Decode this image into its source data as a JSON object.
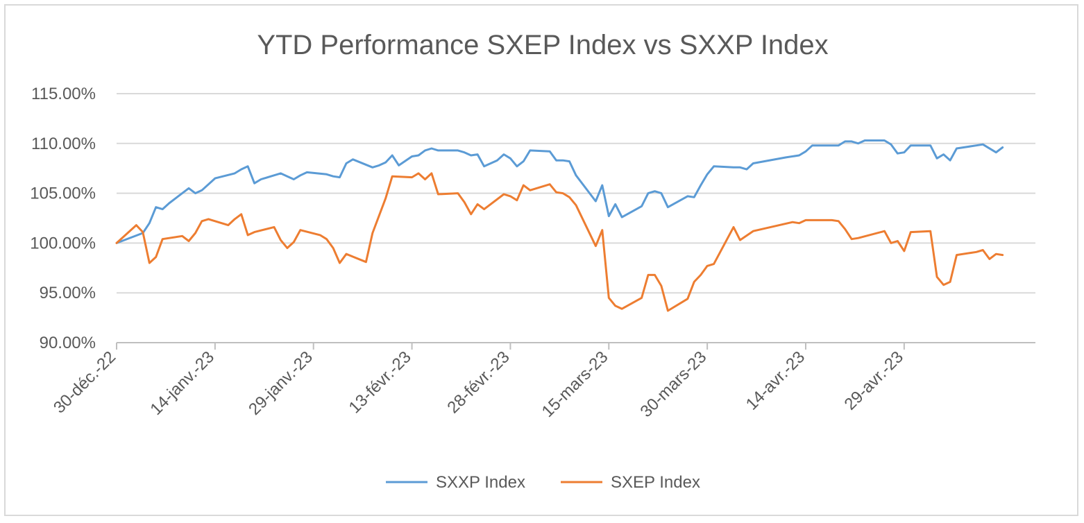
{
  "chart_data": {
    "type": "line",
    "title": "YTD Performance SXEP Index vs SXXP Index",
    "xlabel": "",
    "ylabel": "",
    "x_range": [
      "2022-12-30",
      "2023-05-19"
    ],
    "ylim": [
      0.9,
      1.15
    ],
    "y_ticks": [
      "90.00%",
      "95.00%",
      "100.00%",
      "105.00%",
      "110.00%",
      "115.00%"
    ],
    "y_tick_values": [
      0.9,
      0.95,
      1.0,
      1.05,
      1.1,
      1.15
    ],
    "x_tick_labels": [
      "30-déc.-22",
      "14-janv.-23",
      "29-janv.-23",
      "13-févr.-23",
      "28-févr.-23",
      "15-mars-23",
      "30-mars-23",
      "14-avr.-23",
      "29-avr.-23"
    ],
    "x_tick_dates": [
      "2022-12-30",
      "2023-01-14",
      "2023-01-29",
      "2023-02-13",
      "2023-02-28",
      "2023-03-15",
      "2023-03-30",
      "2023-04-14",
      "2023-04-29"
    ],
    "grid": true,
    "legend_position": "bottom",
    "series": [
      {
        "name": "SXXP Index",
        "color": "#5b9bd5",
        "points": [
          [
            "2022-12-30",
            1.0
          ],
          [
            "2023-01-03",
            1.01
          ],
          [
            "2023-01-04",
            1.02
          ],
          [
            "2023-01-05",
            1.036
          ],
          [
            "2023-01-06",
            1.034
          ],
          [
            "2023-01-07",
            1.04
          ],
          [
            "2023-01-09",
            1.05
          ],
          [
            "2023-01-10",
            1.055
          ],
          [
            "2023-01-11",
            1.05
          ],
          [
            "2023-01-12",
            1.053
          ],
          [
            "2023-01-14",
            1.065
          ],
          [
            "2023-01-17",
            1.07
          ],
          [
            "2023-01-18",
            1.074
          ],
          [
            "2023-01-19",
            1.077
          ],
          [
            "2023-01-20",
            1.06
          ],
          [
            "2023-01-21",
            1.064
          ],
          [
            "2023-01-24",
            1.07
          ],
          [
            "2023-01-25",
            1.067
          ],
          [
            "2023-01-26",
            1.064
          ],
          [
            "2023-01-27",
            1.068
          ],
          [
            "2023-01-28",
            1.071
          ],
          [
            "2023-01-31",
            1.069
          ],
          [
            "2023-02-01",
            1.067
          ],
          [
            "2023-02-02",
            1.066
          ],
          [
            "2023-02-03",
            1.08
          ],
          [
            "2023-02-04",
            1.084
          ],
          [
            "2023-02-07",
            1.076
          ],
          [
            "2023-02-08",
            1.078
          ],
          [
            "2023-02-09",
            1.081
          ],
          [
            "2023-02-10",
            1.088
          ],
          [
            "2023-02-11",
            1.078
          ],
          [
            "2023-02-13",
            1.087
          ],
          [
            "2023-02-14",
            1.088
          ],
          [
            "2023-02-15",
            1.093
          ],
          [
            "2023-02-16",
            1.095
          ],
          [
            "2023-02-17",
            1.093
          ],
          [
            "2023-02-20",
            1.093
          ],
          [
            "2023-02-21",
            1.091
          ],
          [
            "2023-02-22",
            1.088
          ],
          [
            "2023-02-23",
            1.089
          ],
          [
            "2023-02-24",
            1.077
          ],
          [
            "2023-02-26",
            1.083
          ],
          [
            "2023-02-27",
            1.089
          ],
          [
            "2023-02-28",
            1.085
          ],
          [
            "2023-03-01",
            1.077
          ],
          [
            "2023-03-02",
            1.082
          ],
          [
            "2023-03-03",
            1.093
          ],
          [
            "2023-03-06",
            1.092
          ],
          [
            "2023-03-07",
            1.083
          ],
          [
            "2023-03-08",
            1.083
          ],
          [
            "2023-03-09",
            1.082
          ],
          [
            "2023-03-10",
            1.068
          ],
          [
            "2023-03-13",
            1.042
          ],
          [
            "2023-03-14",
            1.058
          ],
          [
            "2023-03-15",
            1.027
          ],
          [
            "2023-03-16",
            1.039
          ],
          [
            "2023-03-17",
            1.026
          ],
          [
            "2023-03-20",
            1.037
          ],
          [
            "2023-03-21",
            1.05
          ],
          [
            "2023-03-22",
            1.052
          ],
          [
            "2023-03-23",
            1.05
          ],
          [
            "2023-03-24",
            1.036
          ],
          [
            "2023-03-27",
            1.047
          ],
          [
            "2023-03-28",
            1.046
          ],
          [
            "2023-03-29",
            1.058
          ],
          [
            "2023-03-30",
            1.069
          ],
          [
            "2023-03-31",
            1.077
          ],
          [
            "2023-04-03",
            1.076
          ],
          [
            "2023-04-04",
            1.076
          ],
          [
            "2023-04-05",
            1.074
          ],
          [
            "2023-04-06",
            1.08
          ],
          [
            "2023-04-11",
            1.086
          ],
          [
            "2023-04-13",
            1.088
          ],
          [
            "2023-04-14",
            1.092
          ],
          [
            "2023-04-15",
            1.098
          ],
          [
            "2023-04-18",
            1.098
          ],
          [
            "2023-04-19",
            1.098
          ],
          [
            "2023-04-20",
            1.102
          ],
          [
            "2023-04-21",
            1.102
          ],
          [
            "2023-04-22",
            1.1
          ],
          [
            "2023-04-23",
            1.103
          ],
          [
            "2023-04-26",
            1.103
          ],
          [
            "2023-04-27",
            1.099
          ],
          [
            "2023-04-28",
            1.09
          ],
          [
            "2023-04-29",
            1.091
          ],
          [
            "2023-04-30",
            1.098
          ],
          [
            "2023-05-03",
            1.098
          ],
          [
            "2023-05-04",
            1.085
          ],
          [
            "2023-05-05",
            1.089
          ],
          [
            "2023-05-06",
            1.083
          ],
          [
            "2023-05-07",
            1.095
          ],
          [
            "2023-05-10",
            1.098
          ],
          [
            "2023-05-11",
            1.099
          ],
          [
            "2023-05-13",
            1.091
          ],
          [
            "2023-05-14",
            1.096
          ]
        ]
      },
      {
        "name": "SXEP Index",
        "color": "#ed7d31",
        "points": [
          [
            "2022-12-30",
            1.0
          ],
          [
            "2023-01-02",
            1.018
          ],
          [
            "2023-01-03",
            1.011
          ],
          [
            "2023-01-04",
            0.98
          ],
          [
            "2023-01-05",
            0.986
          ],
          [
            "2023-01-06",
            1.004
          ],
          [
            "2023-01-09",
            1.007
          ],
          [
            "2023-01-10",
            1.002
          ],
          [
            "2023-01-11",
            1.01
          ],
          [
            "2023-01-12",
            1.022
          ],
          [
            "2023-01-13",
            1.024
          ],
          [
            "2023-01-16",
            1.018
          ],
          [
            "2023-01-17",
            1.024
          ],
          [
            "2023-01-18",
            1.029
          ],
          [
            "2023-01-19",
            1.008
          ],
          [
            "2023-01-20",
            1.011
          ],
          [
            "2023-01-23",
            1.016
          ],
          [
            "2023-01-24",
            1.003
          ],
          [
            "2023-01-25",
            0.995
          ],
          [
            "2023-01-26",
            1.001
          ],
          [
            "2023-01-27",
            1.013
          ],
          [
            "2023-01-30",
            1.008
          ],
          [
            "2023-01-31",
            1.004
          ],
          [
            "2023-02-01",
            0.995
          ],
          [
            "2023-02-02",
            0.98
          ],
          [
            "2023-02-03",
            0.989
          ],
          [
            "2023-02-06",
            0.981
          ],
          [
            "2023-02-07",
            1.01
          ],
          [
            "2023-02-09",
            1.045
          ],
          [
            "2023-02-10",
            1.067
          ],
          [
            "2023-02-13",
            1.066
          ],
          [
            "2023-02-14",
            1.07
          ],
          [
            "2023-02-15",
            1.064
          ],
          [
            "2023-02-16",
            1.07
          ],
          [
            "2023-02-17",
            1.049
          ],
          [
            "2023-02-20",
            1.05
          ],
          [
            "2023-02-21",
            1.041
          ],
          [
            "2023-02-22",
            1.029
          ],
          [
            "2023-02-23",
            1.039
          ],
          [
            "2023-02-24",
            1.034
          ],
          [
            "2023-02-27",
            1.049
          ],
          [
            "2023-02-28",
            1.047
          ],
          [
            "2023-03-01",
            1.043
          ],
          [
            "2023-03-02",
            1.058
          ],
          [
            "2023-03-03",
            1.053
          ],
          [
            "2023-03-06",
            1.059
          ],
          [
            "2023-03-07",
            1.051
          ],
          [
            "2023-03-08",
            1.05
          ],
          [
            "2023-03-09",
            1.046
          ],
          [
            "2023-03-10",
            1.038
          ],
          [
            "2023-03-13",
            0.997
          ],
          [
            "2023-03-14",
            1.013
          ],
          [
            "2023-03-15",
            0.945
          ],
          [
            "2023-03-16",
            0.937
          ],
          [
            "2023-03-17",
            0.934
          ],
          [
            "2023-03-20",
            0.945
          ],
          [
            "2023-03-21",
            0.968
          ],
          [
            "2023-03-22",
            0.968
          ],
          [
            "2023-03-23",
            0.957
          ],
          [
            "2023-03-24",
            0.932
          ],
          [
            "2023-03-27",
            0.944
          ],
          [
            "2023-03-28",
            0.961
          ],
          [
            "2023-03-29",
            0.968
          ],
          [
            "2023-03-30",
            0.977
          ],
          [
            "2023-03-31",
            0.979
          ],
          [
            "2023-04-03",
            1.016
          ],
          [
            "2023-04-04",
            1.003
          ],
          [
            "2023-04-06",
            1.012
          ],
          [
            "2023-04-12",
            1.021
          ],
          [
            "2023-04-13",
            1.02
          ],
          [
            "2023-04-14",
            1.023
          ],
          [
            "2023-04-18",
            1.023
          ],
          [
            "2023-04-19",
            1.022
          ],
          [
            "2023-04-20",
            1.014
          ],
          [
            "2023-04-21",
            1.004
          ],
          [
            "2023-04-22",
            1.005
          ],
          [
            "2023-04-26",
            1.012
          ],
          [
            "2023-04-27",
            1.0
          ],
          [
            "2023-04-28",
            1.002
          ],
          [
            "2023-04-29",
            0.992
          ],
          [
            "2023-04-30",
            1.011
          ],
          [
            "2023-05-03",
            1.012
          ],
          [
            "2023-05-04",
            0.966
          ],
          [
            "2023-05-05",
            0.958
          ],
          [
            "2023-05-06",
            0.961
          ],
          [
            "2023-05-07",
            0.988
          ],
          [
            "2023-05-10",
            0.991
          ],
          [
            "2023-05-11",
            0.993
          ],
          [
            "2023-05-12",
            0.984
          ],
          [
            "2023-05-13",
            0.989
          ],
          [
            "2023-05-14",
            0.988
          ]
        ]
      }
    ]
  }
}
